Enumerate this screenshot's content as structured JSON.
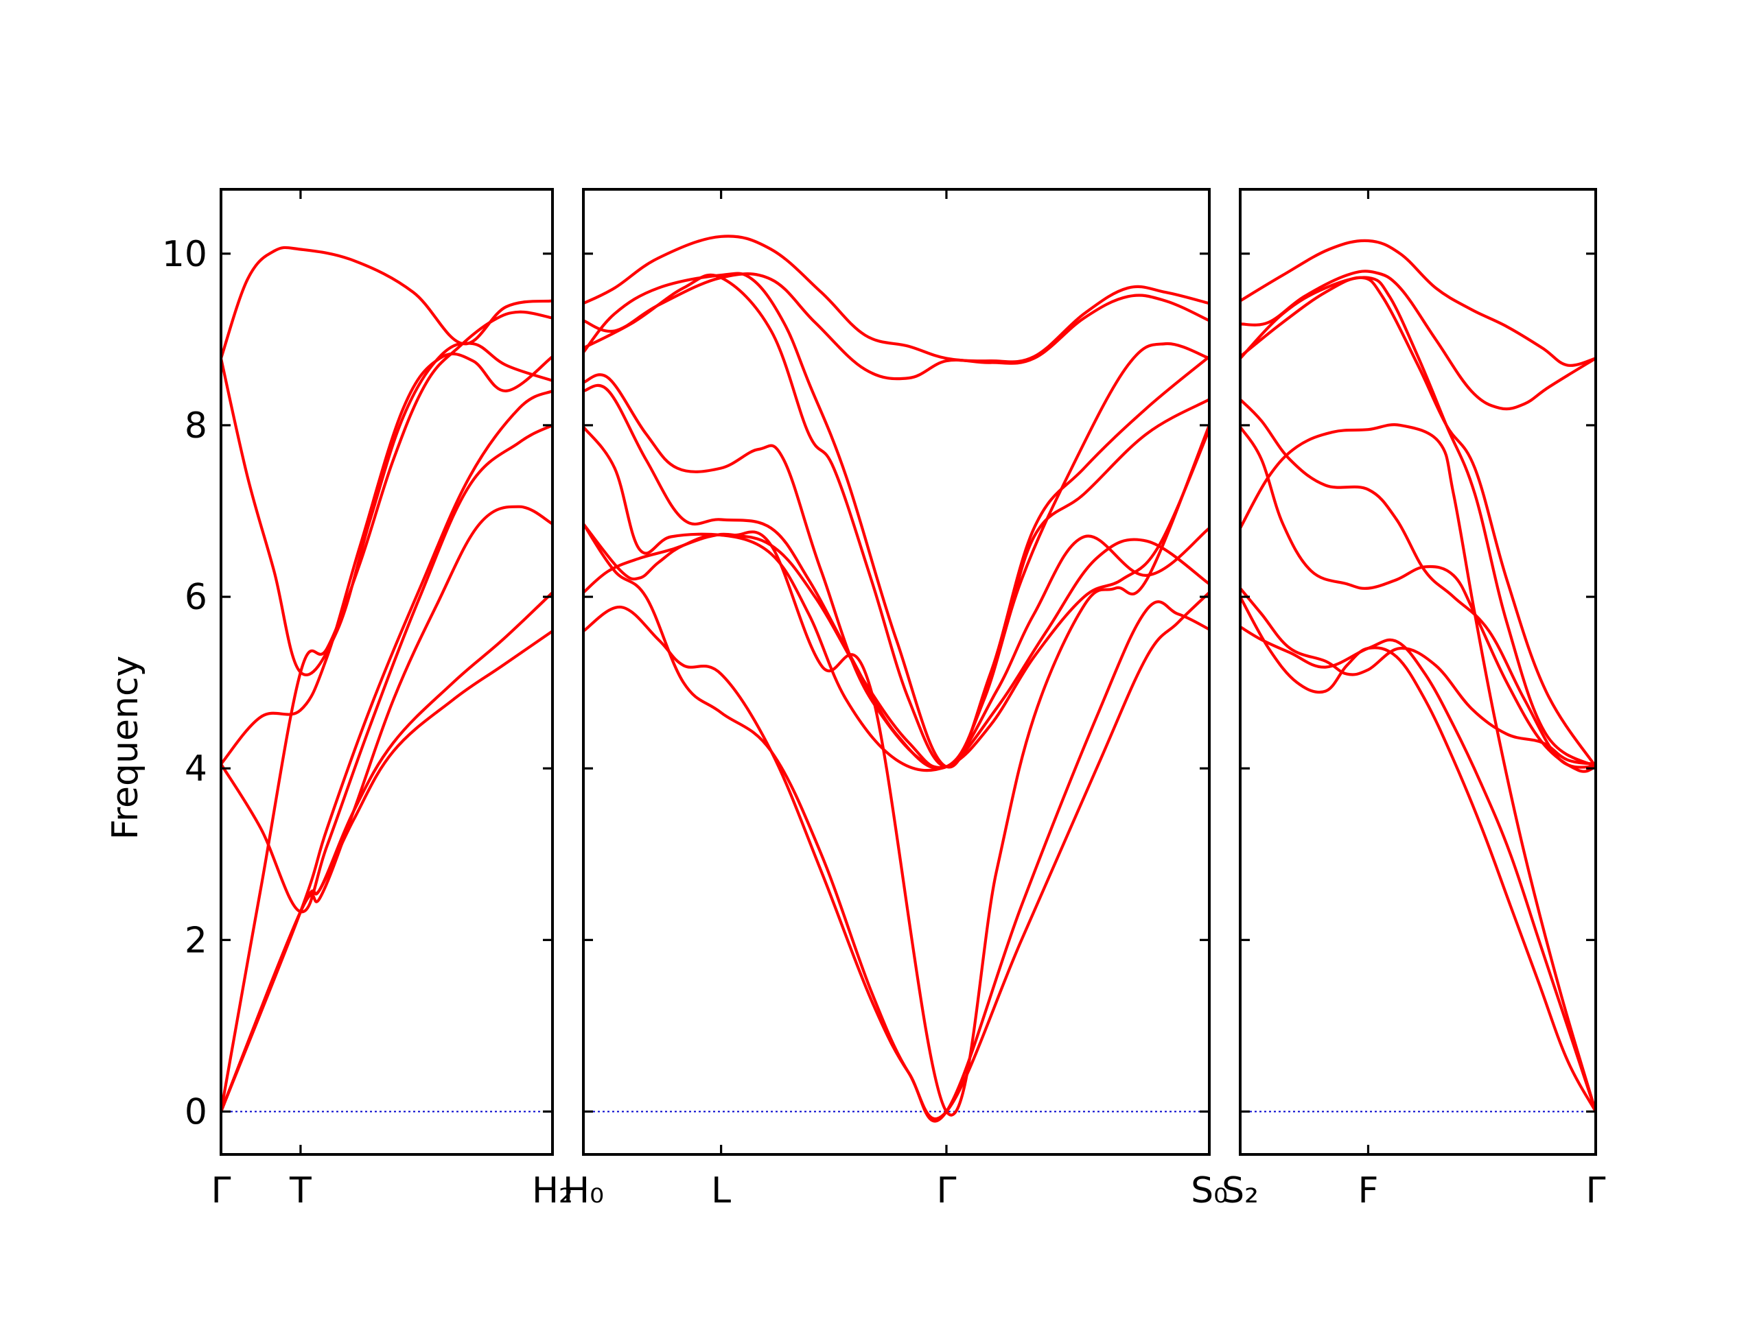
{
  "chart_data": {
    "type": "line",
    "title": "",
    "xlabel": "",
    "ylabel": "Frequency",
    "ylim": [
      -0.5,
      10.75
    ],
    "yticks": [
      0,
      2,
      4,
      6,
      8,
      10
    ],
    "grid": false,
    "legend": "none",
    "colors": {
      "bands": "#ff0000",
      "zero_line": "#0000cc",
      "axes": "#000000"
    },
    "panels": [
      {
        "xlim": [
          0,
          1
        ],
        "xticks": [
          {
            "x": 0,
            "label": "Γ"
          },
          {
            "x": 0.24,
            "label": "T"
          },
          {
            "x": 1,
            "label": "H₂"
          }
        ],
        "series": [
          {
            "x": [
              0,
              0.08,
              0.16,
              0.24,
              0.4,
              0.58,
              0.73,
              0.86,
              1.0
            ],
            "y": [
              8.78,
              9.7,
              10.03,
              10.05,
              9.92,
              9.55,
              8.95,
              9.38,
              9.45
            ]
          },
          {
            "x": [
              0,
              0.08,
              0.16,
              0.24,
              0.35,
              0.45,
              0.55,
              0.66,
              0.76,
              0.86,
              1.0
            ],
            "y": [
              8.78,
              7.4,
              6.3,
              5.12,
              5.6,
              6.9,
              8.1,
              8.8,
              8.95,
              8.7,
              8.52
            ]
          },
          {
            "x": [
              0,
              0.12,
              0.24,
              0.32,
              0.42,
              0.55,
              0.66,
              0.76,
              0.86,
              1.0
            ],
            "y": [
              4.05,
              4.6,
              4.68,
              5.3,
              6.6,
              8.2,
              8.78,
              8.75,
              8.4,
              8.8
            ]
          },
          {
            "x": [
              0,
              0.12,
              0.24,
              0.32,
              0.42,
              0.52,
              0.62,
              0.72,
              0.82,
              0.9,
              1.0
            ],
            "y": [
              0,
              2.6,
              5.12,
              5.4,
              6.4,
              7.6,
              8.5,
              8.92,
              9.22,
              9.32,
              9.25
            ]
          },
          {
            "x": [
              0,
              0.24,
              0.32,
              0.45,
              0.6,
              0.75,
              0.9,
              1.0
            ],
            "y": [
              0,
              2.33,
              3.3,
              4.7,
              6.1,
              7.4,
              8.2,
              8.4
            ]
          },
          {
            "x": [
              0,
              0.12,
              0.24,
              0.32,
              0.45,
              0.6,
              0.75,
              0.9,
              1.0
            ],
            "y": [
              4.05,
              3.3,
              2.33,
              3.1,
              4.5,
              6.0,
              7.3,
              7.8,
              8.0
            ]
          },
          {
            "x": [
              0,
              0.24,
              0.3,
              0.4,
              0.52,
              0.65,
              0.78,
              0.9,
              1.0
            ],
            "y": [
              0,
              2.33,
              2.5,
              3.5,
              4.8,
              5.9,
              6.85,
              7.05,
              6.85
            ]
          },
          {
            "x": [
              0,
              0.24,
              0.3,
              0.4,
              0.52,
              0.7,
              0.85,
              1.0
            ],
            "y": [
              0,
              2.33,
              2.6,
              3.5,
              4.3,
              5.0,
              5.5,
              6.05
            ]
          },
          {
            "x": [
              0,
              0.24,
              0.3,
              0.4,
              0.52,
              0.7,
              0.85,
              1.0
            ],
            "y": [
              0,
              2.33,
              2.6,
              3.4,
              4.2,
              4.8,
              5.2,
              5.6
            ]
          }
        ]
      },
      {
        "xlim": [
          0,
          1
        ],
        "xticks": [
          {
            "x": 0,
            "label": "H₀"
          },
          {
            "x": 0.22,
            "label": "L"
          },
          {
            "x": 0.58,
            "label": "Γ"
          },
          {
            "x": 1,
            "label": "S₀"
          }
        ],
        "series": [
          {
            "x": [
              0,
              0.05,
              0.12,
              0.22,
              0.3,
              0.38,
              0.45,
              0.52,
              0.58,
              0.65,
              0.72,
              0.8,
              0.87,
              0.93,
              1.0
            ],
            "y": [
              9.42,
              9.6,
              9.95,
              10.2,
              10.05,
              9.55,
              9.05,
              8.92,
              8.78,
              8.75,
              8.8,
              9.3,
              9.6,
              9.55,
              9.42
            ]
          },
          {
            "x": [
              0,
              0.05,
              0.12,
              0.22,
              0.3,
              0.37,
              0.45,
              0.52,
              0.58,
              0.65,
              0.72,
              0.8,
              0.87,
              0.93,
              1.0
            ],
            "y": [
              9.22,
              9.1,
              9.4,
              9.72,
              9.7,
              9.2,
              8.65,
              8.55,
              8.75,
              8.73,
              8.78,
              9.25,
              9.5,
              9.45,
              9.22
            ]
          },
          {
            "x": [
              0,
              0.08,
              0.16,
              0.22,
              0.3,
              0.36,
              0.4,
              0.46,
              0.52,
              0.58,
              0.64,
              0.7,
              0.78,
              0.87,
              0.93,
              1.0
            ],
            "y": [
              8.9,
              9.2,
              9.6,
              9.72,
              9.1,
              7.9,
              7.5,
              6.2,
              4.8,
              4.02,
              4.8,
              6.2,
              7.5,
              8.7,
              8.95,
              8.78
            ]
          },
          {
            "x": [
              0,
              0.05,
              0.12,
              0.22,
              0.27,
              0.32,
              0.36,
              0.42,
              0.5,
              0.58,
              0.65,
              0.72,
              0.8,
              0.9,
              1.0
            ],
            "y": [
              8.85,
              9.3,
              9.6,
              9.75,
              9.7,
              9.2,
              8.5,
              7.4,
              5.5,
              4.02,
              5.1,
              6.8,
              7.5,
              8.2,
              8.8
            ]
          },
          {
            "x": [
              0,
              0.04,
              0.1,
              0.15,
              0.22,
              0.28,
              0.32,
              0.38,
              0.46,
              0.58,
              0.66,
              0.72,
              0.8,
              0.9,
              1.0
            ],
            "y": [
              8.5,
              8.55,
              7.9,
              7.5,
              7.5,
              7.72,
              7.6,
              6.3,
              4.8,
              4.02,
              5.3,
              6.7,
              7.2,
              7.9,
              8.3
            ]
          },
          {
            "x": [
              0,
              0.04,
              0.1,
              0.16,
              0.22,
              0.3,
              0.36,
              0.42,
              0.5,
              0.58,
              0.66,
              0.72,
              0.8,
              0.9,
              1.0
            ],
            "y": [
              8.4,
              8.4,
              7.6,
              6.9,
              6.9,
              6.8,
              6.2,
              5.4,
              4.4,
              4.02,
              4.9,
              5.8,
              6.7,
              6.25,
              6.8
            ]
          },
          {
            "x": [
              0,
              0.05,
              0.09,
              0.14,
              0.22,
              0.3,
              0.37,
              0.45,
              0.52,
              0.58,
              0.66,
              0.74,
              0.82,
              0.9,
              1.0
            ],
            "y": [
              7.98,
              7.5,
              6.55,
              6.7,
              6.72,
              6.6,
              6.0,
              5.0,
              4.3,
              4.02,
              4.7,
              5.6,
              6.45,
              6.65,
              6.15
            ]
          },
          {
            "x": [
              0,
              0.06,
              0.09,
              0.12,
              0.16,
              0.22,
              0.3,
              0.36,
              0.42,
              0.5,
              0.58,
              0.65,
              0.72,
              0.8,
              0.86,
              0.92,
              1.0
            ],
            "y": [
              6.85,
              6.3,
              6.22,
              6.4,
              6.6,
              6.72,
              6.5,
              5.8,
              4.8,
              4.1,
              4.02,
              4.5,
              5.3,
              6.0,
              6.2,
              6.6,
              7.95
            ]
          },
          {
            "x": [
              0,
              0.04,
              0.09,
              0.14,
              0.2,
              0.24,
              0.3,
              0.38,
              0.46,
              0.58,
              0.66,
              0.72,
              0.8,
              0.85,
              0.9,
              1.0
            ],
            "y": [
              6.05,
              6.3,
              6.45,
              6.55,
              6.7,
              6.72,
              6.6,
              5.2,
              4.9,
              0,
              2.8,
              4.6,
              5.9,
              6.1,
              6.2,
              8.0
            ]
          },
          {
            "x": [
              0,
              0.06,
              0.12,
              0.16,
              0.22,
              0.3,
              0.38,
              0.46,
              0.52,
              0.58,
              0.7,
              0.82,
              0.9,
              0.95,
              1.0
            ],
            "y": [
              5.6,
              5.88,
              5.5,
              5.2,
              5.1,
              4.2,
              2.8,
              1.3,
              0.45,
              0,
              2.4,
              4.6,
              5.85,
              5.8,
              5.62
            ]
          },
          {
            "x": [
              0,
              0.05,
              0.1,
              0.16,
              0.22,
              0.3,
              0.38,
              0.46,
              0.52,
              0.58,
              0.7,
              0.82,
              0.9,
              0.95,
              1.0
            ],
            "y": [
              6.85,
              6.3,
              6.0,
              5.0,
              4.65,
              4.2,
              3.0,
              1.4,
              0.45,
              0,
              2.0,
              4.0,
              5.3,
              5.7,
              6.05
            ]
          }
        ]
      },
      {
        "xlim": [
          0,
          1
        ],
        "xticks": [
          {
            "x": 0,
            "label": "S₂"
          },
          {
            "x": 0.36,
            "label": "F"
          },
          {
            "x": 1,
            "label": "Γ"
          }
        ],
        "series": [
          {
            "x": [
              0,
              0.12,
              0.25,
              0.36,
              0.45,
              0.55,
              0.65,
              0.75,
              0.85,
              0.92,
              1.0
            ],
            "y": [
              9.45,
              9.75,
              10.05,
              10.15,
              10.0,
              9.6,
              9.35,
              9.15,
              8.9,
              8.7,
              8.78
            ]
          },
          {
            "x": [
              0,
              0.08,
              0.18,
              0.3,
              0.38,
              0.45,
              0.55,
              0.65,
              0.73,
              0.8,
              0.87,
              1.0
            ],
            "y": [
              9.18,
              9.2,
              9.5,
              9.75,
              9.78,
              9.6,
              9.0,
              8.4,
              8.2,
              8.25,
              8.45,
              8.78
            ]
          },
          {
            "x": [
              0,
              0.12,
              0.24,
              0.36,
              0.42,
              0.5,
              0.58,
              0.66,
              0.75,
              0.86,
              1.0
            ],
            "y": [
              8.78,
              9.3,
              9.6,
              9.72,
              9.5,
              8.8,
              8.0,
              7.2,
              5.7,
              4.4,
              4.02
            ]
          },
          {
            "x": [
              0,
              0.12,
              0.24,
              0.34,
              0.4,
              0.5,
              0.58,
              0.66,
              0.75,
              0.86,
              1.0
            ],
            "y": [
              8.8,
              9.2,
              9.55,
              9.72,
              9.5,
              8.7,
              8.0,
              7.5,
              6.2,
              4.9,
              4.02
            ]
          },
          {
            "x": [
              0,
              0.06,
              0.14,
              0.24,
              0.36,
              0.44,
              0.52,
              0.6,
              0.7,
              0.8,
              0.9,
              1.0
            ],
            "y": [
              8.3,
              8.05,
              7.6,
              7.3,
              7.25,
              6.9,
              6.3,
              6.0,
              5.6,
              4.8,
              4.1,
              4.02
            ]
          },
          {
            "x": [
              0,
              0.06,
              0.12,
              0.2,
              0.3,
              0.36,
              0.44,
              0.52,
              0.6,
              0.66,
              0.75,
              0.85,
              0.95,
              1.0
            ],
            "y": [
              7.98,
              7.6,
              6.85,
              6.3,
              6.15,
              6.1,
              6.2,
              6.35,
              6.25,
              5.8,
              5.0,
              4.3,
              3.98,
              4.02
            ]
          },
          {
            "x": [
              0,
              0.08,
              0.16,
              0.26,
              0.36,
              0.45,
              0.56,
              0.6,
              0.66,
              0.72,
              0.8,
              0.9,
              1.0
            ],
            "y": [
              6.8,
              7.4,
              7.75,
              7.92,
              7.95,
              8.0,
              7.8,
              7.2,
              5.8,
              4.5,
              3.0,
              1.4,
              0
            ]
          },
          {
            "x": [
              0,
              0.06,
              0.14,
              0.24,
              0.3,
              0.36,
              0.45,
              0.55,
              0.65,
              0.75,
              0.85,
              0.92,
              1.0
            ],
            "y": [
              6.1,
              5.8,
              5.4,
              5.25,
              5.1,
              5.15,
              5.4,
              5.2,
              4.7,
              4.4,
              4.3,
              4.1,
              4.05
            ]
          },
          {
            "x": [
              0,
              0.06,
              0.14,
              0.24,
              0.36,
              0.44,
              0.52,
              0.6,
              0.68,
              0.76,
              0.84,
              0.92,
              1.0
            ],
            "y": [
              5.65,
              5.5,
              5.35,
              5.18,
              5.4,
              5.48,
              5.1,
              4.5,
              3.8,
              3.0,
              2.0,
              1.0,
              0
            ]
          },
          {
            "x": [
              0,
              0.08,
              0.16,
              0.24,
              0.3,
              0.36,
              0.44,
              0.52,
              0.6,
              0.68,
              0.76,
              0.84,
              0.92,
              1.0
            ],
            "y": [
              6.0,
              5.4,
              5.0,
              4.9,
              5.2,
              5.4,
              5.3,
              4.8,
              4.1,
              3.3,
              2.4,
              1.5,
              0.6,
              0
            ]
          }
        ]
      }
    ]
  }
}
